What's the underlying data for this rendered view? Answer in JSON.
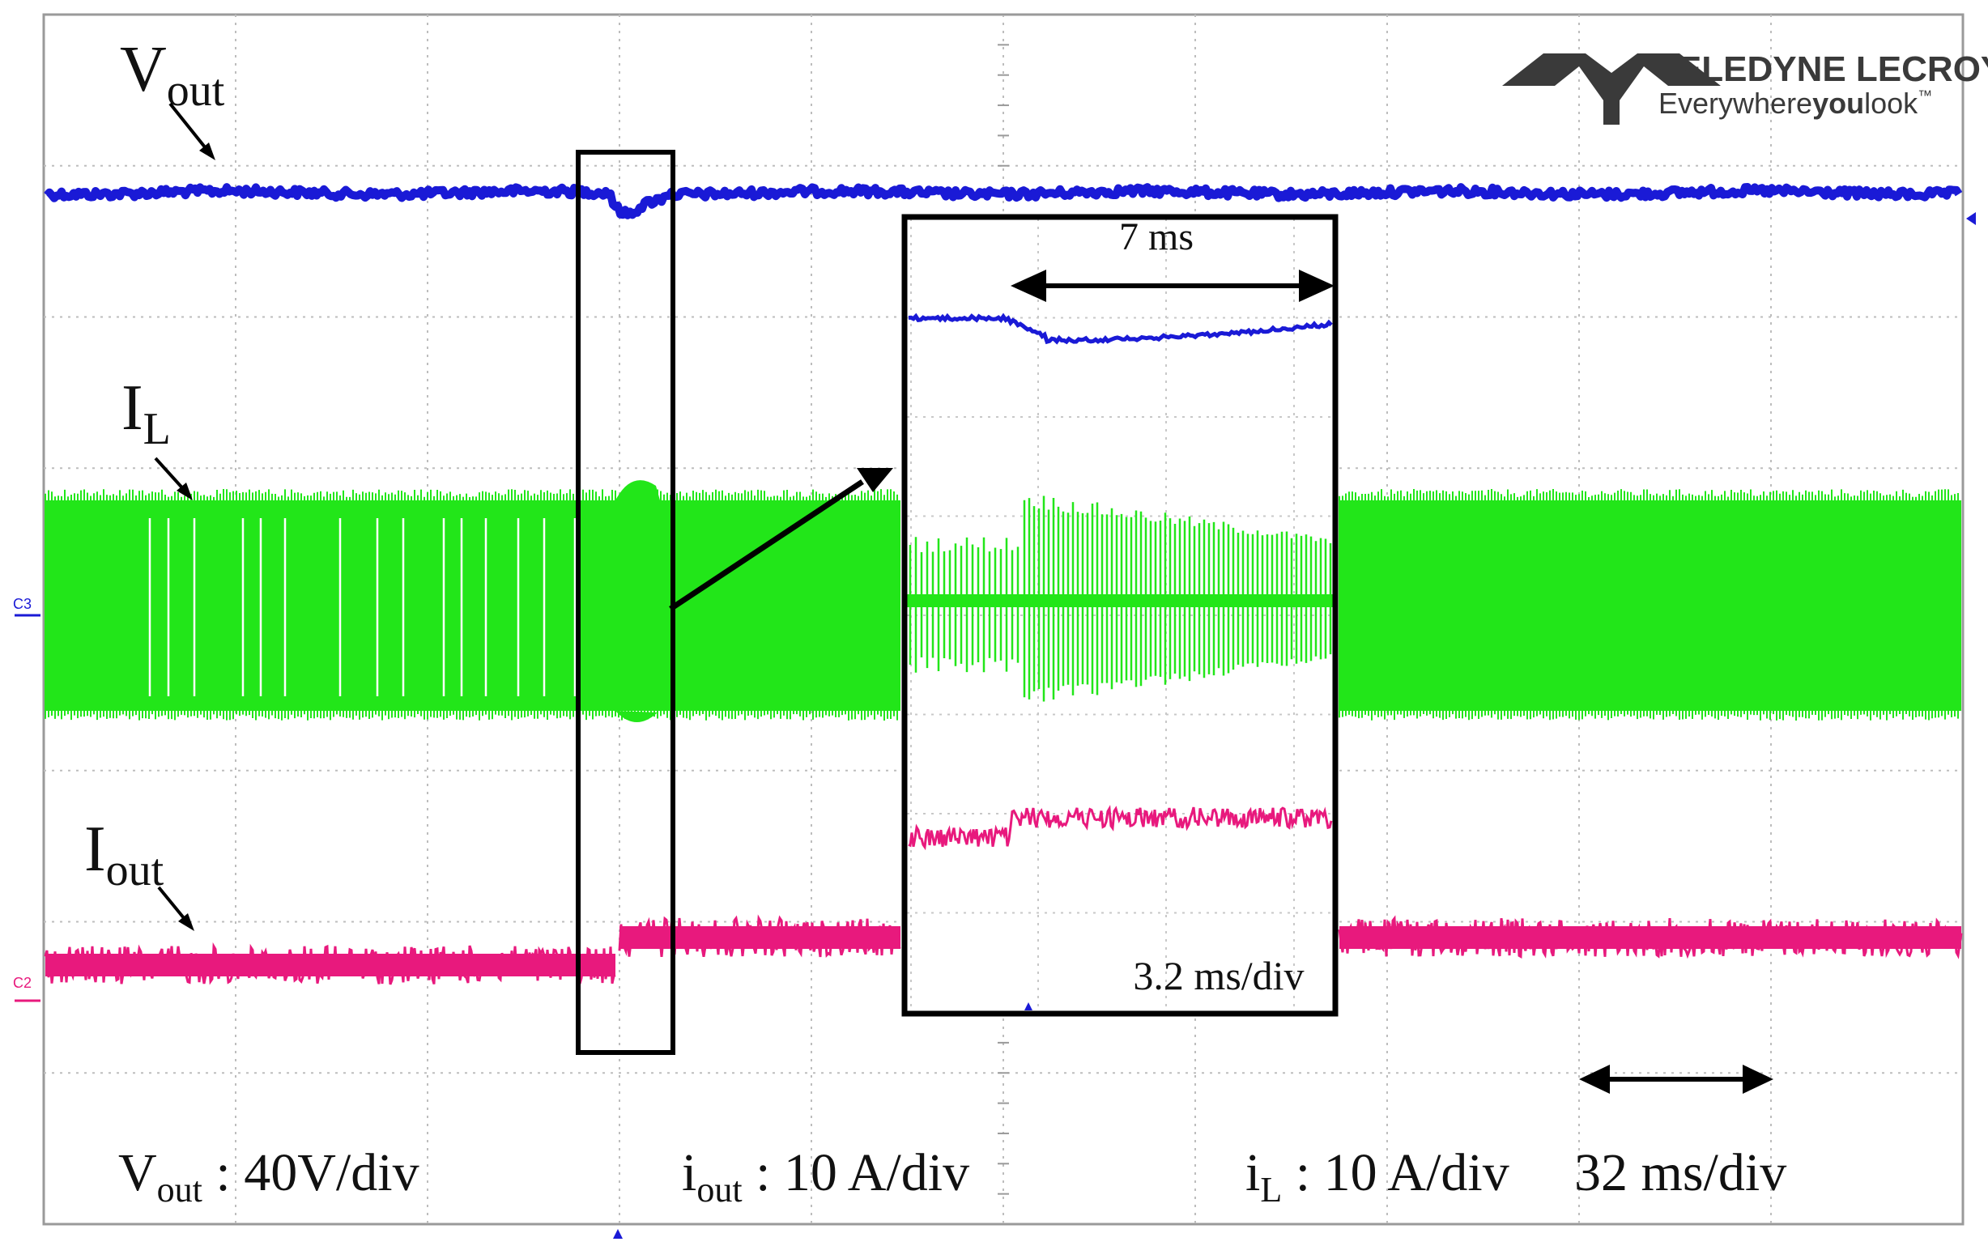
{
  "chart_data": {
    "type": "line",
    "title": "",
    "instrument": {
      "brand": "TELEDYNE LECROY",
      "tagline_pre": "Everywhere",
      "tagline_bold": "you",
      "tagline_post": "look",
      "tagline_mark": "™"
    },
    "grid": {
      "divisions_x": 10,
      "divisions_y": 8,
      "on": true
    },
    "timebase_label": "32 ms/div",
    "channel_markers": {
      "c3": "C3",
      "c2": "C2"
    },
    "series": [
      {
        "name": "Vout",
        "label_main": "V",
        "label_sub": "out",
        "color": "#1a1ad6",
        "scale_main": "V",
        "scale_sub": "out",
        "scale_rest": " : 40V/div"
      },
      {
        "name": "IL",
        "label_main": "I",
        "label_sub": "L",
        "color": "#22e619",
        "scale_main": "i",
        "scale_sub": "L",
        "scale_rest": " : 10 A/div"
      },
      {
        "name": "Iout",
        "label_main": "I",
        "label_sub": "out",
        "color": "#e8197d",
        "scale_main": "i",
        "scale_sub": "out",
        "scale_rest": " : 10 A/div"
      }
    ],
    "inset": {
      "duration_label": "7 ms",
      "timebase_label": "3.2 ms/div"
    }
  }
}
